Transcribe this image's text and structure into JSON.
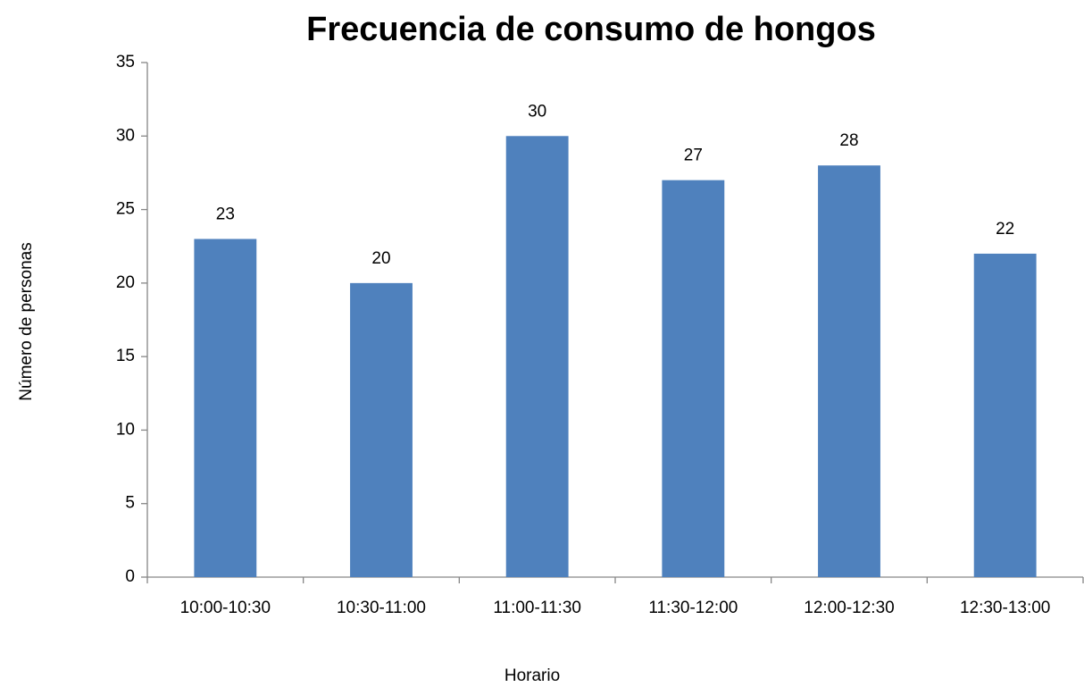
{
  "chart_data": {
    "type": "bar",
    "title": "Frecuencia de consumo de hongos",
    "x_label": "Horario",
    "y_label": "Número de personas",
    "categories": [
      "10:00-10:30",
      "10:30-11:00",
      "11:00-11:30",
      "11:30-12:00",
      "12:00-12:30",
      "12:30-13:00"
    ],
    "values": [
      23,
      20,
      30,
      27,
      28,
      22
    ],
    "color": "#4f81bd",
    "ylim": [
      0,
      35
    ],
    "yticks": [
      0,
      5,
      10,
      15,
      20,
      25,
      30,
      35
    ],
    "grid": false
  }
}
